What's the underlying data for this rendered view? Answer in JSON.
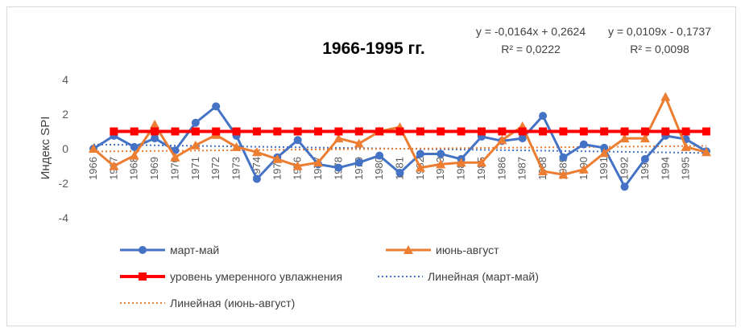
{
  "chart_data": {
    "type": "line",
    "title": "1966-1995 гг.",
    "ylabel": "Индекс SPI",
    "xlabel": "",
    "ylim": [
      -4,
      4
    ],
    "yticks": [
      4,
      2,
      0,
      -2,
      -4
    ],
    "grid": false,
    "legend_position": "bottom",
    "categories": [
      "1966",
      "1967",
      "1968",
      "1969",
      "1970",
      "1971",
      "1972",
      "1973",
      "1974",
      "1975",
      "1976",
      "1977",
      "1978",
      "1979",
      "1980",
      "1981",
      "1982",
      "1983",
      "1984",
      "1985",
      "1986",
      "1987",
      "1988",
      "1989",
      "1990",
      "1991",
      "1992",
      "1993",
      "1994",
      "1995",
      ""
    ],
    "series": [
      {
        "name": "март-май",
        "color": "#4472c4",
        "marker": "circle",
        "values": [
          0.0,
          0.75,
          0.1,
          0.6,
          -0.1,
          1.5,
          2.45,
          0.75,
          -1.75,
          -0.5,
          0.5,
          -0.9,
          -1.1,
          -0.8,
          -0.4,
          -1.4,
          -0.3,
          -0.3,
          -0.6,
          0.7,
          0.45,
          0.6,
          1.9,
          -0.5,
          0.25,
          0.05,
          -2.2,
          -0.6,
          0.75,
          0.55,
          -0.15
        ]
      },
      {
        "name": "июнь-август",
        "color": "#ed7d31",
        "marker": "triangle",
        "values": [
          0.0,
          -1.0,
          -0.4,
          1.4,
          -0.5,
          0.2,
          0.8,
          0.1,
          -0.2,
          -0.6,
          -1.0,
          -0.8,
          0.6,
          0.3,
          1.0,
          1.25,
          -1.1,
          -0.9,
          -0.8,
          -0.8,
          0.5,
          1.3,
          -1.3,
          -1.5,
          -1.2,
          -0.25,
          0.6,
          0.6,
          3.0,
          0.1,
          -0.2
        ]
      },
      {
        "name": "уровень умеренного увлажнения",
        "color": "#ff0000",
        "marker": "square",
        "values": [
          null,
          1.0,
          1.0,
          1.0,
          1.0,
          1.0,
          1.0,
          1.0,
          1.0,
          1.0,
          1.0,
          1.0,
          1.0,
          1.0,
          1.0,
          1.0,
          1.0,
          1.0,
          1.0,
          1.0,
          1.0,
          1.0,
          1.0,
          1.0,
          1.0,
          1.0,
          1.0,
          1.0,
          1.0,
          1.0,
          1.0
        ]
      }
    ],
    "trendlines": [
      {
        "name": "Линейная (март-май)",
        "color": "#4472c4",
        "equation": "y = -0,0164x + 0,2624",
        "r2": "R² = 0,0222",
        "slope": -0.0164,
        "intercept": 0.2624
      },
      {
        "name": "Линейная (июнь-август)",
        "color": "#ed7d31",
        "equation": "y = 0,0109x - 0,1737",
        "r2": "R² = 0,0098",
        "slope": 0.0109,
        "intercept": -0.1737
      }
    ]
  }
}
